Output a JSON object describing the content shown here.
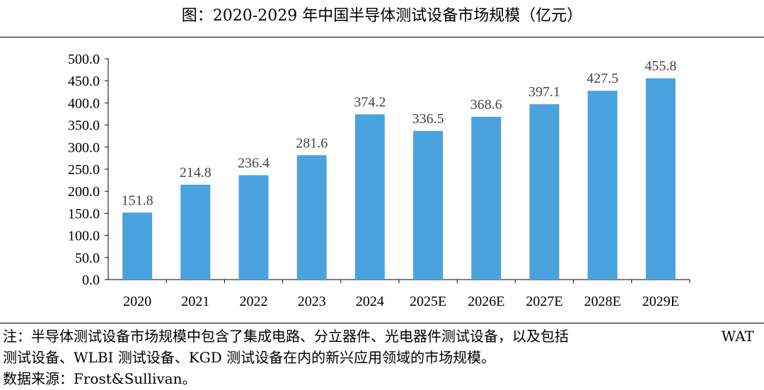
{
  "figure": {
    "title": "图：2020-2029 年中国半导体测试设备市场规模（亿元）"
  },
  "chart_data": {
    "type": "bar",
    "title": "图：2020-2029 年中国半导体测试设备市场规模（亿元）",
    "xlabel": "",
    "ylabel": "",
    "categories": [
      "2020",
      "2021",
      "2022",
      "2023",
      "2024",
      "2025E",
      "2026E",
      "2027E",
      "2028E",
      "2029E"
    ],
    "values": [
      151.8,
      214.8,
      236.4,
      281.6,
      374.2,
      336.5,
      368.6,
      397.1,
      427.5,
      455.8
    ],
    "value_labels": [
      "151.8",
      "214.8",
      "236.4",
      "281.6",
      "374.2",
      "336.5",
      "368.6",
      "397.1",
      "427.5",
      "455.8"
    ],
    "ylim": [
      0,
      500
    ],
    "yticks": [
      "0.0",
      "50.0",
      "100.0",
      "150.0",
      "200.0",
      "250.0",
      "300.0",
      "350.0",
      "400.0",
      "450.0",
      "500.0"
    ],
    "bar_color": "#4aa3df",
    "grid": false,
    "legend": "none"
  },
  "notes": {
    "note_line1_parts": [
      "注：半导体测试设备市场规模中包含了集成电路、分立器件、光电器件测试设备，以及包括",
      "WAT"
    ],
    "note_line2": "测试设备、WLBI 测试设备、KGD 测试设备在内的新兴应用领域的市场规模。",
    "source": "数据来源：Frost&Sullivan。"
  }
}
